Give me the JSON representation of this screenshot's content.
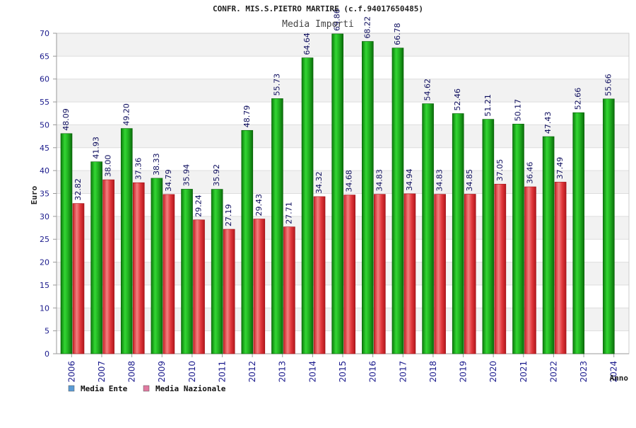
{
  "chart_data": {
    "type": "bar",
    "title": "CONFR. MIS.S.PIETRO MARTIRE (c.f.94017650485)",
    "subtitle": "Media Importi",
    "xlabel": "Anno",
    "ylabel": "Euro",
    "ylim": [
      0,
      70
    ],
    "ytick_step": 5,
    "grid": true,
    "legend_position": "bottom-left",
    "categories": [
      "2006",
      "2007",
      "2008",
      "2009",
      "2010",
      "2011",
      "2012",
      "2013",
      "2014",
      "2015",
      "2016",
      "2017",
      "2018",
      "2019",
      "2020",
      "2021",
      "2022",
      "2023",
      "2024"
    ],
    "series": [
      {
        "name": "Media Ente",
        "legend_color": "#5b9bd5",
        "bar_color": "#1fae1f",
        "labels": [
          "48.09",
          "41.93",
          "49.20",
          "38.33",
          "35.94",
          "35.92",
          "48.79",
          "55.73",
          "64.64",
          "69.86",
          "68.22",
          "66.78",
          "54.62",
          "52.46",
          "51.21",
          "50.17",
          "47.43",
          "52.66",
          "55.66"
        ],
        "values": [
          48.09,
          41.93,
          49.2,
          38.33,
          35.94,
          35.92,
          48.79,
          55.73,
          64.64,
          69.86,
          68.22,
          66.78,
          54.62,
          52.46,
          51.21,
          50.17,
          47.43,
          52.66,
          55.66
        ]
      },
      {
        "name": "Media Nazionale",
        "legend_color": "#e07aa0",
        "bar_color": "#e2383c",
        "labels": [
          "32.82",
          "38.00",
          "37.36",
          "34.79",
          "29.24",
          "27.19",
          "29.43",
          "27.71",
          "34.32",
          "34.68",
          "34.83",
          "34.94",
          "34.83",
          "34.85",
          "37.05",
          "36.46",
          "37.49",
          null,
          null
        ],
        "values": [
          32.82,
          38.0,
          37.36,
          34.79,
          29.24,
          27.19,
          29.43,
          27.71,
          34.32,
          34.68,
          34.83,
          34.94,
          34.83,
          34.85,
          37.05,
          36.46,
          37.49,
          null,
          null
        ]
      }
    ]
  }
}
